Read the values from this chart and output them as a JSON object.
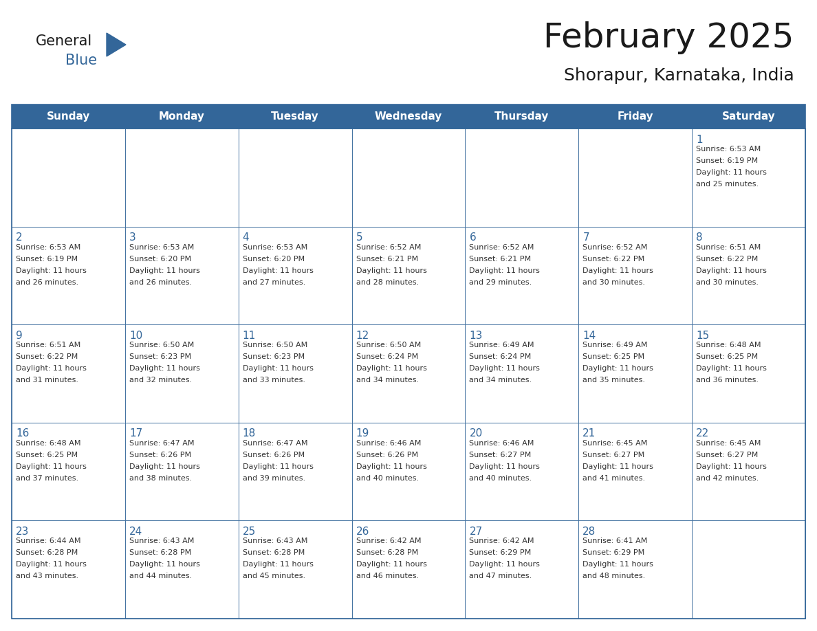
{
  "title": "February 2025",
  "subtitle": "Shorapur, Karnataka, India",
  "header_bg_color": "#336699",
  "header_text_color": "#ffffff",
  "border_color": "#336699",
  "day_text_color": "#336699",
  "info_text_color": "#333333",
  "title_color": "#1a1a1a",
  "logo_general_color": "#1a1a1a",
  "logo_blue_color": "#336699",
  "logo_triangle_color": "#336699",
  "days_of_week": [
    "Sunday",
    "Monday",
    "Tuesday",
    "Wednesday",
    "Thursday",
    "Friday",
    "Saturday"
  ],
  "calendar_data": [
    [
      null,
      null,
      null,
      null,
      null,
      null,
      {
        "day": 1,
        "sunrise": "6:53 AM",
        "sunset": "6:19 PM",
        "daylight_hours": 11,
        "daylight_minutes": 25
      }
    ],
    [
      {
        "day": 2,
        "sunrise": "6:53 AM",
        "sunset": "6:19 PM",
        "daylight_hours": 11,
        "daylight_minutes": 26
      },
      {
        "day": 3,
        "sunrise": "6:53 AM",
        "sunset": "6:20 PM",
        "daylight_hours": 11,
        "daylight_minutes": 26
      },
      {
        "day": 4,
        "sunrise": "6:53 AM",
        "sunset": "6:20 PM",
        "daylight_hours": 11,
        "daylight_minutes": 27
      },
      {
        "day": 5,
        "sunrise": "6:52 AM",
        "sunset": "6:21 PM",
        "daylight_hours": 11,
        "daylight_minutes": 28
      },
      {
        "day": 6,
        "sunrise": "6:52 AM",
        "sunset": "6:21 PM",
        "daylight_hours": 11,
        "daylight_minutes": 29
      },
      {
        "day": 7,
        "sunrise": "6:52 AM",
        "sunset": "6:22 PM",
        "daylight_hours": 11,
        "daylight_minutes": 30
      },
      {
        "day": 8,
        "sunrise": "6:51 AM",
        "sunset": "6:22 PM",
        "daylight_hours": 11,
        "daylight_minutes": 30
      }
    ],
    [
      {
        "day": 9,
        "sunrise": "6:51 AM",
        "sunset": "6:22 PM",
        "daylight_hours": 11,
        "daylight_minutes": 31
      },
      {
        "day": 10,
        "sunrise": "6:50 AM",
        "sunset": "6:23 PM",
        "daylight_hours": 11,
        "daylight_minutes": 32
      },
      {
        "day": 11,
        "sunrise": "6:50 AM",
        "sunset": "6:23 PM",
        "daylight_hours": 11,
        "daylight_minutes": 33
      },
      {
        "day": 12,
        "sunrise": "6:50 AM",
        "sunset": "6:24 PM",
        "daylight_hours": 11,
        "daylight_minutes": 34
      },
      {
        "day": 13,
        "sunrise": "6:49 AM",
        "sunset": "6:24 PM",
        "daylight_hours": 11,
        "daylight_minutes": 34
      },
      {
        "day": 14,
        "sunrise": "6:49 AM",
        "sunset": "6:25 PM",
        "daylight_hours": 11,
        "daylight_minutes": 35
      },
      {
        "day": 15,
        "sunrise": "6:48 AM",
        "sunset": "6:25 PM",
        "daylight_hours": 11,
        "daylight_minutes": 36
      }
    ],
    [
      {
        "day": 16,
        "sunrise": "6:48 AM",
        "sunset": "6:25 PM",
        "daylight_hours": 11,
        "daylight_minutes": 37
      },
      {
        "day": 17,
        "sunrise": "6:47 AM",
        "sunset": "6:26 PM",
        "daylight_hours": 11,
        "daylight_minutes": 38
      },
      {
        "day": 18,
        "sunrise": "6:47 AM",
        "sunset": "6:26 PM",
        "daylight_hours": 11,
        "daylight_minutes": 39
      },
      {
        "day": 19,
        "sunrise": "6:46 AM",
        "sunset": "6:26 PM",
        "daylight_hours": 11,
        "daylight_minutes": 40
      },
      {
        "day": 20,
        "sunrise": "6:46 AM",
        "sunset": "6:27 PM",
        "daylight_hours": 11,
        "daylight_minutes": 40
      },
      {
        "day": 21,
        "sunrise": "6:45 AM",
        "sunset": "6:27 PM",
        "daylight_hours": 11,
        "daylight_minutes": 41
      },
      {
        "day": 22,
        "sunrise": "6:45 AM",
        "sunset": "6:27 PM",
        "daylight_hours": 11,
        "daylight_minutes": 42
      }
    ],
    [
      {
        "day": 23,
        "sunrise": "6:44 AM",
        "sunset": "6:28 PM",
        "daylight_hours": 11,
        "daylight_minutes": 43
      },
      {
        "day": 24,
        "sunrise": "6:43 AM",
        "sunset": "6:28 PM",
        "daylight_hours": 11,
        "daylight_minutes": 44
      },
      {
        "day": 25,
        "sunrise": "6:43 AM",
        "sunset": "6:28 PM",
        "daylight_hours": 11,
        "daylight_minutes": 45
      },
      {
        "day": 26,
        "sunrise": "6:42 AM",
        "sunset": "6:28 PM",
        "daylight_hours": 11,
        "daylight_minutes": 46
      },
      {
        "day": 27,
        "sunrise": "6:42 AM",
        "sunset": "6:29 PM",
        "daylight_hours": 11,
        "daylight_minutes": 47
      },
      {
        "day": 28,
        "sunrise": "6:41 AM",
        "sunset": "6:29 PM",
        "daylight_hours": 11,
        "daylight_minutes": 48
      },
      null
    ]
  ]
}
